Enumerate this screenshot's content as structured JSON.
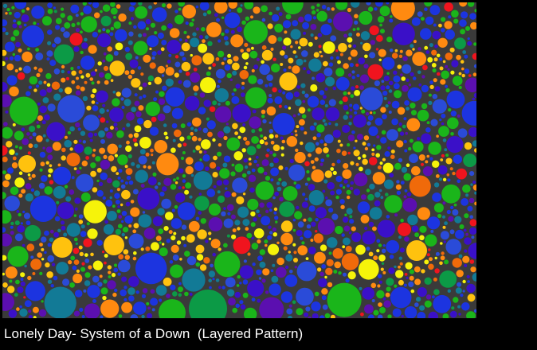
{
  "caption": "Lonely Day- System of a Down  (Layered Pattern)",
  "artwork": {
    "background_color": "#3a3a3a",
    "palette": {
      "blue": "#1c34e0",
      "royal_blue": "#2a4bd8",
      "indigo": "#3a10c8",
      "purple": "#5b0fb0",
      "teal": "#127a96",
      "green": "#1ab51a",
      "dark_green": "#0c9a46",
      "yellow": "#f6f30a",
      "gold": "#ffc20e",
      "orange": "#ff8a10",
      "dark_orange": "#f06a0a",
      "red": "#f0141e"
    },
    "description_style": "layered circle packing in three wavy warm bands over cool background"
  }
}
